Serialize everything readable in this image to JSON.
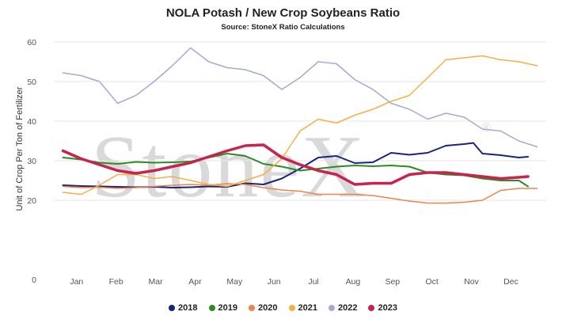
{
  "chart_data": {
    "type": "line",
    "title": "NOLA Potash / New Crop Soybeans Ratio",
    "subtitle": "Source: StoneX Ratio Calculations",
    "ylabel": "Unit of Crop Per Ton of Fertilizer",
    "xlabel": "",
    "ylim": [
      0,
      60
    ],
    "yticks": [
      0,
      20,
      30,
      40,
      50,
      60
    ],
    "x_tick_labels": [
      "Jan",
      "Feb",
      "Mar",
      "Apr",
      "May",
      "Jun",
      "Jul",
      "Aug",
      "Sep",
      "Oct",
      "Nov",
      "Dec"
    ],
    "x_unit": "week of year",
    "grid": true,
    "legend_position": "bottom",
    "watermark": "StoneX",
    "series": [
      {
        "name": "2018",
        "color": "#1a237e",
        "stroke_width": 2,
        "x": [
          1,
          3,
          5,
          7,
          9,
          11,
          13,
          15,
          17,
          19,
          21,
          23,
          25,
          27,
          29,
          31,
          33,
          35,
          37,
          39,
          41,
          43,
          45,
          46,
          47,
          49,
          51,
          52
        ],
        "values": [
          23.8,
          23.6,
          23.5,
          23.4,
          23.3,
          23.4,
          23.2,
          23.3,
          23.5,
          23.4,
          24.3,
          24.0,
          25.5,
          28.0,
          30.8,
          31.2,
          29.4,
          29.6,
          32.0,
          31.5,
          32.0,
          33.8,
          34.2,
          34.5,
          31.8,
          31.4,
          30.8,
          31.0
        ]
      },
      {
        "name": "2019",
        "color": "#2e8b22",
        "stroke_width": 2,
        "x": [
          1,
          3,
          5,
          7,
          9,
          11,
          13,
          15,
          17,
          19,
          21,
          23,
          25,
          27,
          29,
          31,
          33,
          35,
          37,
          39,
          41,
          43,
          45,
          47,
          49,
          51,
          52
        ],
        "values": [
          30.8,
          30.3,
          29.5,
          29.2,
          29.7,
          29.5,
          29.6,
          29.8,
          30.8,
          31.8,
          31.2,
          29.2,
          28.5,
          27.5,
          28.0,
          28.5,
          28.8,
          28.6,
          28.8,
          28.5,
          27.0,
          26.5,
          26.3,
          25.5,
          25.0,
          25.0,
          23.5
        ]
      },
      {
        "name": "2020",
        "color": "#f0834a",
        "stroke_width": 1.5,
        "x": [
          1,
          3,
          5,
          7,
          9,
          11,
          13,
          15,
          17,
          19,
          21,
          23,
          25,
          27,
          29,
          31,
          33,
          35,
          37,
          39,
          41,
          43,
          45,
          47,
          49,
          51,
          53
        ],
        "values": [
          23.5,
          23.2,
          23.3,
          23.0,
          23.2,
          23.5,
          23.8,
          24.0,
          23.8,
          24.2,
          24.0,
          23.2,
          22.6,
          22.3,
          21.5,
          21.5,
          21.5,
          21.2,
          20.5,
          19.8,
          19.3,
          19.3,
          19.5,
          20.0,
          22.5,
          23.0,
          23.0
        ]
      },
      {
        "name": "2021",
        "color": "#f5b042",
        "stroke_width": 1.5,
        "x": [
          1,
          3,
          5,
          7,
          9,
          11,
          13,
          15,
          17,
          19,
          21,
          23,
          25,
          27,
          29,
          31,
          33,
          35,
          37,
          39,
          41,
          43,
          45,
          47,
          49,
          51,
          53
        ],
        "values": [
          22.0,
          21.5,
          23.8,
          26.5,
          26.5,
          25.5,
          26.0,
          25.0,
          24.0,
          23.5,
          25.0,
          26.5,
          30.5,
          37.5,
          40.5,
          39.5,
          41.5,
          43.0,
          45.0,
          46.5,
          51.0,
          55.5,
          56.0,
          56.5,
          55.5,
          55.0,
          54.0
        ]
      },
      {
        "name": "2022",
        "color": "#a6a9d4",
        "stroke_width": 1.5,
        "x": [
          1,
          3,
          5,
          7,
          9,
          11,
          13,
          15,
          17,
          19,
          21,
          23,
          25,
          27,
          29,
          31,
          33,
          35,
          37,
          39,
          41,
          43,
          45,
          47,
          49,
          51,
          53
        ],
        "values": [
          52.2,
          51.5,
          50.0,
          44.5,
          46.5,
          50.0,
          54.0,
          58.5,
          55.0,
          53.5,
          53.0,
          51.5,
          48.0,
          51.0,
          55.0,
          54.5,
          50.5,
          48.0,
          44.5,
          43.0,
          40.5,
          42.0,
          41.0,
          38.0,
          37.5,
          35.0,
          33.5
        ]
      },
      {
        "name": "2023",
        "color": "#c8234e",
        "stroke_width": 3.5,
        "x": [
          1,
          3,
          5,
          7,
          9,
          11,
          13,
          15,
          17,
          19,
          21,
          23,
          25,
          27,
          29,
          31,
          33,
          35,
          37,
          39,
          41,
          43,
          45,
          47,
          49,
          51,
          52
        ],
        "values": [
          32.5,
          30.5,
          29.0,
          27.5,
          26.8,
          27.5,
          28.5,
          29.5,
          31.0,
          32.5,
          33.8,
          34.0,
          30.8,
          29.0,
          27.5,
          26.5,
          24.0,
          24.3,
          24.3,
          26.5,
          27.0,
          27.0,
          26.5,
          26.0,
          25.5,
          25.8,
          26.0
        ]
      }
    ]
  }
}
